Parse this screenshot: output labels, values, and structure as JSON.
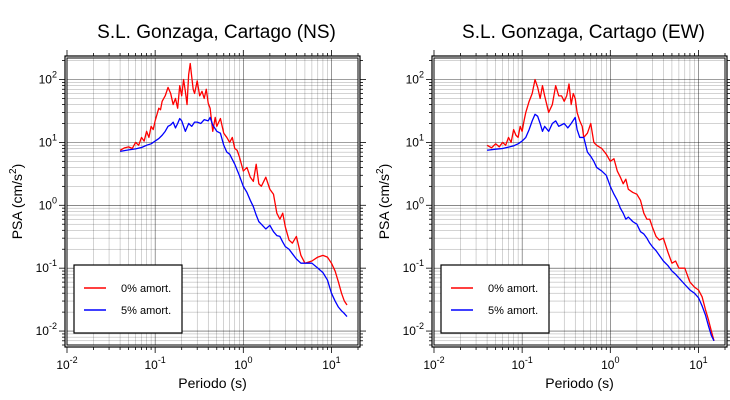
{
  "chart_data": [
    {
      "type": "line",
      "title": "S.L. Gonzaga, Cartago (NS)",
      "xlabel": "Periodo (s)",
      "ylabel_main": "PSA (cm/s",
      "ylabel_sup": "2",
      "ylabel_tail": ")",
      "xscale": "log",
      "yscale": "log",
      "xlim": [
        0.01,
        20
      ],
      "ylim": [
        0.006,
        220
      ],
      "grid": true,
      "legend_position": "bottom-left",
      "x_ticks": [
        {
          "base": "10",
          "exp": "-2"
        },
        {
          "base": "10",
          "exp": "-1"
        },
        {
          "base": "10",
          "exp": "0"
        },
        {
          "base": "10",
          "exp": "1"
        }
      ],
      "y_ticks": [
        {
          "base": "10",
          "exp": "-2"
        },
        {
          "base": "10",
          "exp": "-1"
        },
        {
          "base": "10",
          "exp": "0"
        },
        {
          "base": "10",
          "exp": "1"
        },
        {
          "base": "10",
          "exp": "2"
        }
      ],
      "series": [
        {
          "name": "0% amort.",
          "color": "#ff0000",
          "x": [
            0.04,
            0.045,
            0.05,
            0.055,
            0.06,
            0.065,
            0.07,
            0.075,
            0.08,
            0.085,
            0.09,
            0.095,
            0.1,
            0.105,
            0.11,
            0.115,
            0.12,
            0.13,
            0.14,
            0.15,
            0.16,
            0.17,
            0.18,
            0.19,
            0.2,
            0.21,
            0.22,
            0.23,
            0.24,
            0.25,
            0.26,
            0.27,
            0.28,
            0.3,
            0.32,
            0.34,
            0.36,
            0.38,
            0.4,
            0.42,
            0.45,
            0.48,
            0.5,
            0.55,
            0.6,
            0.65,
            0.7,
            0.75,
            0.8,
            0.85,
            0.9,
            1.0,
            1.1,
            1.2,
            1.3,
            1.4,
            1.5,
            1.6,
            1.8,
            2.0,
            2.2,
            2.4,
            2.6,
            2.8,
            3.0,
            3.3,
            3.6,
            4.0,
            4.5,
            5.0,
            6.0,
            7.0,
            8.0,
            9.0,
            10.0,
            11.0,
            12.0,
            13.0,
            14.0,
            15.0
          ],
          "y": [
            7.5,
            8.2,
            8.5,
            8.0,
            10.0,
            9.0,
            12.0,
            10.5,
            15.0,
            12.0,
            18.0,
            16.0,
            22.0,
            28.0,
            35.0,
            33.0,
            45.0,
            55.0,
            75.0,
            60.0,
            40.0,
            50.0,
            35.0,
            80.0,
            55.0,
            100.0,
            65.0,
            40.0,
            120.0,
            180.0,
            110.0,
            70.0,
            60.0,
            95.0,
            55.0,
            65.0,
            50.0,
            70.0,
            42.0,
            35.0,
            15.0,
            25.0,
            18.0,
            24.0,
            14.0,
            12.0,
            10.0,
            12.0,
            8.0,
            7.5,
            6.0,
            3.5,
            4.0,
            2.8,
            2.4,
            4.5,
            2.2,
            2.0,
            2.8,
            1.8,
            1.5,
            0.75,
            0.6,
            0.75,
            0.45,
            0.28,
            0.25,
            0.32,
            0.16,
            0.12,
            0.13,
            0.15,
            0.16,
            0.15,
            0.12,
            0.09,
            0.06,
            0.04,
            0.03,
            0.026
          ]
        },
        {
          "name": "5% amort.",
          "color": "#0000ff",
          "x": [
            0.04,
            0.05,
            0.06,
            0.07,
            0.08,
            0.09,
            0.1,
            0.11,
            0.12,
            0.13,
            0.14,
            0.15,
            0.16,
            0.17,
            0.18,
            0.19,
            0.2,
            0.22,
            0.24,
            0.26,
            0.28,
            0.3,
            0.33,
            0.36,
            0.4,
            0.42,
            0.45,
            0.5,
            0.55,
            0.6,
            0.65,
            0.7,
            0.8,
            0.9,
            1.0,
            1.1,
            1.2,
            1.3,
            1.4,
            1.5,
            1.6,
            1.8,
            2.0,
            2.2,
            2.4,
            2.6,
            2.8,
            3.0,
            3.3,
            3.6,
            4.0,
            4.5,
            5.0,
            6.0,
            7.0,
            8.0,
            9.0,
            10.0,
            11.0,
            12.0,
            13.0,
            14.0,
            15.0
          ],
          "y": [
            7.2,
            7.6,
            7.9,
            8.3,
            9.0,
            9.5,
            10.5,
            11.5,
            13.0,
            15.0,
            18.0,
            19.0,
            21.0,
            17.0,
            20.0,
            24.0,
            22.0,
            15.0,
            20.0,
            18.0,
            21.0,
            21.0,
            20.0,
            23.0,
            22.0,
            25.0,
            19.0,
            15.0,
            14.0,
            9.0,
            7.0,
            6.5,
            4.5,
            3.0,
            2.0,
            1.6,
            1.2,
            0.95,
            0.7,
            0.55,
            0.5,
            0.42,
            0.48,
            0.38,
            0.33,
            0.32,
            0.26,
            0.22,
            0.2,
            0.17,
            0.14,
            0.12,
            0.12,
            0.12,
            0.1,
            0.085,
            0.065,
            0.04,
            0.03,
            0.024,
            0.021,
            0.019,
            0.017
          ]
        }
      ]
    },
    {
      "type": "line",
      "title": "S.L. Gonzaga, Cartago (EW)",
      "xlabel": "Periodo (s)",
      "ylabel_main": "PSA (cm/s",
      "ylabel_sup": "2",
      "ylabel_tail": ")",
      "xscale": "log",
      "yscale": "log",
      "xlim": [
        0.01,
        20
      ],
      "ylim": [
        0.006,
        220
      ],
      "grid": true,
      "legend_position": "bottom-left",
      "x_ticks": [
        {
          "base": "10",
          "exp": "-2"
        },
        {
          "base": "10",
          "exp": "-1"
        },
        {
          "base": "10",
          "exp": "0"
        },
        {
          "base": "10",
          "exp": "1"
        }
      ],
      "y_ticks": [
        {
          "base": "10",
          "exp": "-2"
        },
        {
          "base": "10",
          "exp": "-1"
        },
        {
          "base": "10",
          "exp": "0"
        },
        {
          "base": "10",
          "exp": "1"
        },
        {
          "base": "10",
          "exp": "2"
        }
      ],
      "series": [
        {
          "name": "0% amort.",
          "color": "#ff0000",
          "x": [
            0.04,
            0.045,
            0.05,
            0.055,
            0.06,
            0.065,
            0.07,
            0.075,
            0.08,
            0.085,
            0.09,
            0.095,
            0.1,
            0.105,
            0.11,
            0.12,
            0.13,
            0.14,
            0.15,
            0.16,
            0.17,
            0.18,
            0.2,
            0.22,
            0.24,
            0.26,
            0.28,
            0.3,
            0.32,
            0.34,
            0.36,
            0.38,
            0.4,
            0.42,
            0.45,
            0.48,
            0.5,
            0.55,
            0.6,
            0.65,
            0.7,
            0.8,
            0.9,
            1.0,
            1.1,
            1.2,
            1.3,
            1.4,
            1.5,
            1.6,
            1.8,
            2.0,
            2.2,
            2.4,
            2.6,
            2.8,
            3.0,
            3.3,
            3.6,
            4.0,
            4.5,
            5.0,
            5.5,
            6.0,
            7.0,
            8.0,
            9.0,
            10.0,
            11.0,
            12.0,
            13.0,
            14.0,
            15.0
          ],
          "y": [
            9.0,
            8.2,
            9.5,
            8.5,
            10.0,
            9.0,
            12.0,
            10.0,
            16.0,
            13.0,
            12.0,
            18.0,
            15.0,
            22.0,
            30.0,
            45.0,
            60.0,
            100.0,
            75.0,
            50.0,
            80.0,
            55.0,
            30.0,
            40.0,
            80.0,
            55.0,
            55.0,
            45.0,
            55.0,
            85.0,
            40.0,
            60.0,
            50.0,
            30.0,
            22.0,
            18.0,
            12.0,
            14.0,
            20.0,
            10.0,
            9.0,
            8.0,
            6.5,
            5.0,
            5.5,
            3.5,
            2.8,
            2.2,
            2.6,
            1.8,
            1.6,
            1.5,
            1.2,
            0.75,
            0.6,
            0.6,
            0.45,
            0.32,
            0.28,
            0.3,
            0.18,
            0.12,
            0.13,
            0.1,
            0.1,
            0.06,
            0.05,
            0.045,
            0.035,
            0.022,
            0.015,
            0.01,
            0.007
          ]
        },
        {
          "name": "5% amort.",
          "color": "#0000ff",
          "x": [
            0.04,
            0.05,
            0.06,
            0.07,
            0.08,
            0.09,
            0.1,
            0.11,
            0.12,
            0.13,
            0.14,
            0.15,
            0.16,
            0.17,
            0.18,
            0.2,
            0.22,
            0.24,
            0.26,
            0.28,
            0.3,
            0.33,
            0.36,
            0.4,
            0.42,
            0.45,
            0.5,
            0.55,
            0.6,
            0.65,
            0.7,
            0.8,
            0.9,
            1.0,
            1.1,
            1.2,
            1.3,
            1.4,
            1.5,
            1.6,
            1.8,
            2.0,
            2.2,
            2.4,
            2.6,
            2.8,
            3.0,
            3.3,
            3.6,
            4.0,
            4.5,
            5.0,
            5.5,
            6.0,
            7.0,
            8.0,
            9.0,
            10.0,
            11.0,
            12.0,
            13.0,
            14.0,
            15.0
          ],
          "y": [
            7.5,
            7.8,
            8.0,
            8.4,
            8.8,
            9.5,
            10.5,
            12.0,
            16.0,
            22.0,
            28.0,
            26.0,
            20.0,
            15.0,
            18.0,
            15.0,
            20.0,
            22.0,
            18.0,
            19.0,
            20.0,
            17.0,
            20.0,
            25.0,
            16.0,
            12.0,
            12.0,
            7.0,
            6.0,
            5.0,
            4.0,
            3.5,
            3.0,
            2.0,
            1.5,
            1.2,
            0.9,
            0.75,
            0.6,
            0.65,
            0.55,
            0.5,
            0.38,
            0.35,
            0.3,
            0.25,
            0.22,
            0.19,
            0.16,
            0.13,
            0.11,
            0.09,
            0.08,
            0.07,
            0.055,
            0.045,
            0.04,
            0.034,
            0.025,
            0.018,
            0.012,
            0.0085,
            0.007
          ]
        }
      ]
    }
  ]
}
